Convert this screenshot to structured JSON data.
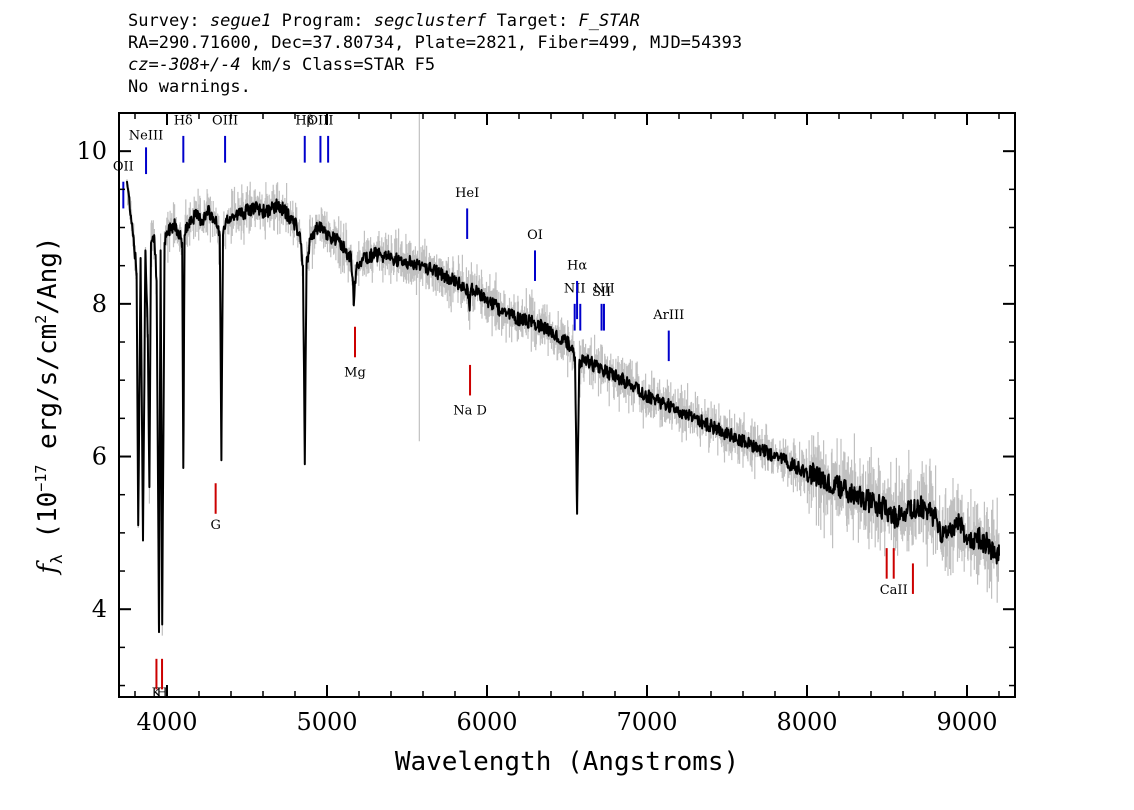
{
  "header": {
    "survey_label": "Survey:",
    "survey": "segue1",
    "program_label": "Program:",
    "program": "segclusterf",
    "target_label": "Target:",
    "target": "F_STAR",
    "line2": "RA=290.71600, Dec=37.80734, Plate=2821, Fiber=499, MJD=54393",
    "cz_label": "cz=",
    "cz_value": "-308+/-4",
    "cz_rest": " km/s Class=STAR F5",
    "line4": "No warnings."
  },
  "chart_data": {
    "type": "line",
    "xlabel": "Wavelength (Angstroms)",
    "ylabel": "f_λ (10^-17 erg/s/cm^2/Ang)",
    "ylabel_parts": {
      "symbol": "f",
      "sub": "λ",
      "pre": " (10",
      "exp": "−17",
      "mid": " erg/s/cm",
      "exp2": "2",
      "post": "/Ang)"
    },
    "xlim": [
      3700,
      9300
    ],
    "ylim": [
      2.85,
      10.5
    ],
    "x_ticks": [
      4000,
      5000,
      6000,
      7000,
      8000,
      9000
    ],
    "x_tick_labels": [
      "4000",
      "5000",
      "6000",
      "7000",
      "8000",
      "9000"
    ],
    "y_ticks": [
      4,
      6,
      8,
      10
    ],
    "y_tick_labels": [
      "4",
      "6",
      "8",
      "10"
    ],
    "series": [
      {
        "role": "spectrum",
        "color": "#000000",
        "x": [
          3750,
          3790,
          3810,
          3820,
          3835,
          3850,
          3865,
          3880,
          3890,
          3900,
          3920,
          3935,
          3950,
          3960,
          3970,
          3985,
          4000,
          4020,
          4050,
          4080,
          4095,
          4102,
          4110,
          4140,
          4180,
          4220,
          4260,
          4300,
          4330,
          4340,
          4350,
          4380,
          4420,
          4480,
          4550,
          4620,
          4700,
          4760,
          4800,
          4830,
          4850,
          4861,
          4872,
          4900,
          4950,
          5000,
          5050,
          5100,
          5150,
          5167,
          5185,
          5220,
          5300,
          5400,
          5500,
          5600,
          5700,
          5800,
          5880,
          5890,
          5900,
          5950,
          6000,
          6100,
          6200,
          6300,
          6400,
          6500,
          6530,
          6550,
          6563,
          6576,
          6600,
          6700,
          6800,
          6900,
          7000,
          7100,
          7200,
          7300,
          7400,
          7500,
          7600,
          7700,
          7800,
          7900,
          8000,
          8100,
          8200,
          8300,
          8400,
          8500,
          8550,
          8600,
          8650,
          8700,
          8800,
          8850,
          8900,
          8950,
          9000,
          9050,
          9100,
          9150,
          9200
        ],
        "values": [
          9.6,
          8.9,
          8.4,
          5.1,
          8.6,
          4.9,
          8.7,
          7.6,
          5.6,
          8.8,
          8.9,
          8.3,
          3.7,
          8.7,
          3.8,
          8.8,
          8.9,
          9.0,
          9.05,
          8.9,
          8.8,
          5.85,
          8.9,
          9.1,
          9.15,
          9.1,
          9.2,
          9.1,
          8.9,
          5.95,
          8.9,
          9.1,
          9.15,
          9.2,
          9.25,
          9.2,
          9.3,
          9.15,
          9.05,
          8.9,
          8.5,
          5.9,
          8.5,
          8.9,
          9.0,
          8.9,
          8.85,
          8.75,
          8.6,
          8.05,
          8.5,
          8.6,
          8.65,
          8.6,
          8.55,
          8.5,
          8.4,
          8.3,
          8.2,
          7.95,
          8.2,
          8.15,
          8.05,
          7.9,
          7.8,
          7.75,
          7.65,
          7.5,
          7.4,
          7.3,
          5.25,
          7.2,
          7.3,
          7.15,
          7.05,
          6.95,
          6.8,
          6.7,
          6.6,
          6.5,
          6.4,
          6.3,
          6.2,
          6.1,
          6.0,
          5.9,
          5.8,
          5.7,
          5.6,
          5.5,
          5.4,
          5.3,
          5.2,
          5.25,
          5.3,
          5.35,
          5.2,
          4.95,
          5.05,
          5.15,
          4.85,
          4.95,
          4.9,
          4.8,
          4.7
        ]
      },
      {
        "role": "noise",
        "color": "#c0c0c0",
        "x": [
          5577
        ],
        "values": [
          10.5
        ]
      }
    ],
    "emission_lines": [
      {
        "label": "OII",
        "wavelength": 3727,
        "color": "#0000cc",
        "y_bottom": 9.25,
        "y_top": 9.6,
        "label_y": 9.75
      },
      {
        "label": "NeIII",
        "wavelength": 3869,
        "color": "#0000cc",
        "y_bottom": 9.7,
        "y_top": 10.05,
        "label_y": 10.15
      },
      {
        "label": "Hδ",
        "wavelength": 4102,
        "color": "#0000cc",
        "y_bottom": 9.85,
        "y_top": 10.2,
        "label_y": 10.35
      },
      {
        "label": "OIII",
        "wavelength": 4363,
        "color": "#0000cc",
        "y_bottom": 9.85,
        "y_top": 10.2,
        "label_y": 10.35
      },
      {
        "label": "Hβ",
        "wavelength": 4861,
        "color": "#0000cc",
        "y_bottom": 9.85,
        "y_top": 10.2,
        "label_y": 10.35
      },
      {
        "label": "OIII",
        "wavelength": 4959,
        "color": "#0000cc",
        "y_bottom": 9.85,
        "y_top": 10.2,
        "label_y": 10.35
      },
      {
        "label": "",
        "wavelength": 5007,
        "color": "#0000cc",
        "y_bottom": 9.85,
        "y_top": 10.2,
        "label_y": 10.35
      },
      {
        "label": "HeI",
        "wavelength": 5876,
        "color": "#0000cc",
        "y_bottom": 8.85,
        "y_top": 9.25,
        "label_y": 9.4
      },
      {
        "label": "OI",
        "wavelength": 6300,
        "color": "#0000cc",
        "y_bottom": 8.3,
        "y_top": 8.7,
        "label_y": 8.85
      },
      {
        "label": "NII",
        "wavelength": 6548,
        "color": "#0000cc",
        "y_bottom": 7.65,
        "y_top": 8.0,
        "label_y": 8.15
      },
      {
        "label": "Hα",
        "wavelength": 6563,
        "color": "#0000cc",
        "y_bottom": 7.8,
        "y_top": 8.3,
        "label_y": 8.45
      },
      {
        "label": "",
        "wavelength": 6583,
        "color": "#0000cc",
        "y_bottom": 7.65,
        "y_top": 8.0,
        "label_y": 8.15
      },
      {
        "label": "SII",
        "wavelength": 6716,
        "color": "#0000cc",
        "y_bottom": 7.65,
        "y_top": 8.0,
        "label_y": 8.1
      },
      {
        "label": "NII",
        "wavelength": 6731,
        "color": "#0000cc",
        "y_bottom": 7.65,
        "y_top": 8.0,
        "label_y": 8.15
      },
      {
        "label": "ArIII",
        "wavelength": 7136,
        "color": "#0000cc",
        "y_bottom": 7.25,
        "y_top": 7.65,
        "label_y": 7.8
      }
    ],
    "absorption_lines": [
      {
        "label": "K",
        "wavelength": 3934,
        "color": "#cc0000",
        "y_bottom": 2.95,
        "y_top": 3.35,
        "label_y": 2.85
      },
      {
        "label": "H",
        "wavelength": 3969,
        "color": "#cc0000",
        "y_bottom": 2.95,
        "y_top": 3.35,
        "label_y": 2.85
      },
      {
        "label": "G",
        "wavelength": 4304,
        "color": "#cc0000",
        "y_bottom": 5.25,
        "y_top": 5.65,
        "label_y": 5.05
      },
      {
        "label": "Mg",
        "wavelength": 5175,
        "color": "#cc0000",
        "y_bottom": 7.3,
        "y_top": 7.7,
        "label_y": 7.05
      },
      {
        "label": "Na D",
        "wavelength": 5894,
        "color": "#cc0000",
        "y_bottom": 6.8,
        "y_top": 7.2,
        "label_y": 6.55
      },
      {
        "label": "",
        "wavelength": 8498,
        "color": "#cc0000",
        "y_bottom": 4.4,
        "y_top": 4.8,
        "label_y": 4.2
      },
      {
        "label": "CaII",
        "wavelength": 8542,
        "color": "#cc0000",
        "y_bottom": 4.4,
        "y_top": 4.8,
        "label_y": 4.2
      },
      {
        "label": "",
        "wavelength": 8662,
        "color": "#cc0000",
        "y_bottom": 4.2,
        "y_top": 4.6,
        "label_y": 4.2
      }
    ],
    "line_label_offsets": {
      "OII": -4,
      "CaII": 0,
      "Na D": 0,
      "NII_6731": 0
    }
  }
}
